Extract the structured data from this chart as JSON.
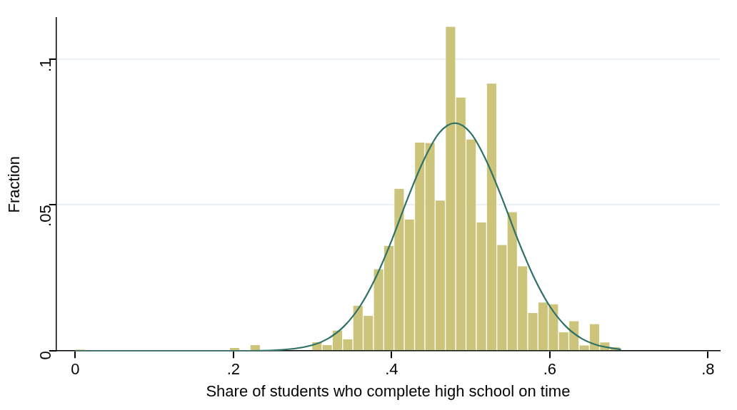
{
  "chart_data": {
    "type": "histogram",
    "xlabel": "Share of students who complete high school on time",
    "ylabel": "Fraction",
    "bins": [
      0,
      0.013,
      0.026,
      0.039,
      0.052,
      0.065,
      0.078,
      0.091,
      0.104,
      0.117,
      0.13,
      0.143,
      0.156,
      0.169,
      0.182,
      0.195,
      0.208,
      0.221,
      0.234,
      0.247,
      0.26,
      0.273,
      0.286,
      0.299,
      0.312,
      0.325,
      0.338,
      0.351,
      0.364,
      0.377,
      0.39,
      0.403,
      0.416,
      0.429,
      0.442,
      0.455,
      0.468,
      0.481,
      0.494,
      0.507,
      0.52,
      0.533,
      0.546,
      0.559,
      0.572,
      0.585,
      0.598,
      0.611,
      0.624,
      0.637,
      0.65,
      0.663,
      0.676,
      0.689
    ],
    "series": [
      {
        "color": "#cdc47c",
        "values": [
          0.0005,
          0,
          0,
          0,
          0,
          0,
          0,
          0,
          0,
          0,
          0,
          0,
          0,
          0,
          0,
          0.001,
          0,
          0.002,
          0,
          0,
          0,
          0,
          0,
          0.003,
          0.002,
          0.007,
          0.004,
          0.0155,
          0.012,
          0.028,
          0.036,
          0.0555,
          0.045,
          0.0713,
          0.0712,
          0.0515,
          0.111,
          0.0868,
          0.0724,
          0.044,
          0.0915,
          0.0363,
          0.0475,
          0.029,
          0.013,
          0.0166,
          0.016,
          0.0064,
          0.0102,
          0.0019,
          0.0092,
          0.0029,
          0.0013
        ]
      },
      {
        "type": "line",
        "color": "#2e7166",
        "x": [
          0,
          0.2,
          0.25,
          0.3,
          0.32,
          0.34,
          0.36,
          0.38,
          0.4,
          0.42,
          0.44,
          0.46,
          0.48,
          0.5,
          0.52,
          0.54,
          0.56,
          0.58,
          0.6,
          0.62,
          0.64,
          0.66,
          0.68,
          0.69
        ],
        "values": [
          0,
          0,
          0.0002,
          0.002,
          0.0043,
          0.0085,
          0.0153,
          0.0252,
          0.0378,
          0.052,
          0.065,
          0.0746,
          0.078,
          0.0746,
          0.065,
          0.052,
          0.0378,
          0.0252,
          0.0153,
          0.0085,
          0.0043,
          0.002,
          0.0009,
          0.0005
        ]
      }
    ],
    "xlim": [
      -0.024,
      0.815
    ],
    "xticks": [
      0,
      {
        "value": 0.2,
        "label": ".2"
      },
      {
        "value": 0.4,
        "label": ".4"
      },
      {
        "value": 0.6,
        "label": ".6"
      },
      {
        "value": 0.8,
        "label": ".8"
      }
    ],
    "ylim": [
      0,
      0.114
    ],
    "yticks": [
      0,
      {
        "value": 0.05,
        "label": ".05"
      },
      {
        "value": 0.1,
        "label": ".1"
      }
    ],
    "grid": "y",
    "legend": false,
    "marker": "none",
    "line_style": "solid"
  }
}
